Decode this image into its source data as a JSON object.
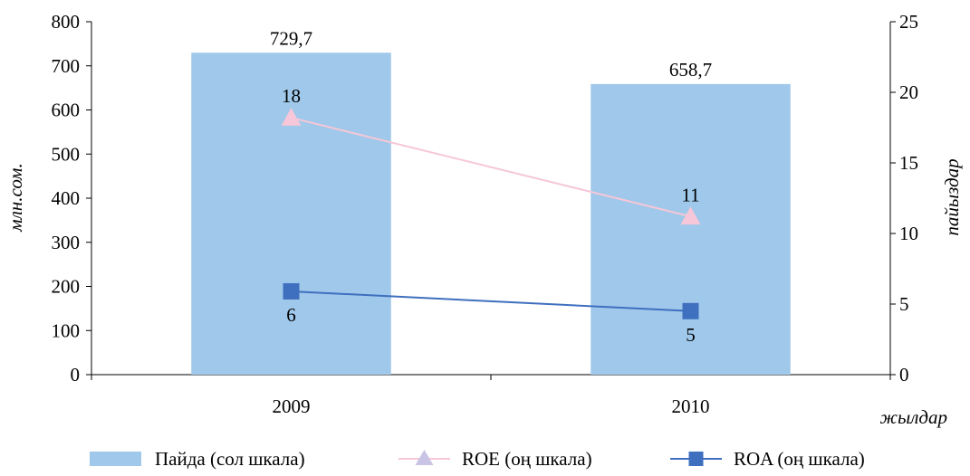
{
  "chart_data": {
    "type": "bar",
    "categories": [
      "2009",
      "2010"
    ],
    "series": [
      {
        "name": "Пайда (сол шкала)",
        "type": "bar",
        "axis": "left",
        "values": [
          729.7,
          658.7
        ],
        "labels": [
          "729,7",
          "658,7"
        ],
        "color": "#9fc8ea"
      },
      {
        "name": "ROE (оң шкала)",
        "type": "line",
        "axis": "right",
        "marker": "triangle",
        "values": [
          18.2,
          11.2
        ],
        "labels": [
          "18",
          "11"
        ],
        "color": "#f6c7d8",
        "marker_color": "#f6c7d8",
        "legend_marker_color": "#c9c3e6"
      },
      {
        "name": "ROA (оң шкала)",
        "type": "line",
        "axis": "right",
        "marker": "square",
        "values": [
          5.9,
          4.5
        ],
        "labels": [
          "6",
          "5"
        ],
        "color": "#3f6fbf"
      }
    ],
    "ylabel_left": "млн.сом.",
    "ylabel_right": "пайыздар",
    "xlabel": "жылдар",
    "ylim_left": [
      0,
      800
    ],
    "yticks_left": [
      "0",
      "100",
      "200",
      "300",
      "400",
      "500",
      "600",
      "700",
      "800"
    ],
    "ylim_right": [
      0,
      25
    ],
    "yticks_right": [
      "0",
      "5",
      "10",
      "15",
      "20",
      "25"
    ],
    "grid": false,
    "legend_position": "bottom"
  }
}
